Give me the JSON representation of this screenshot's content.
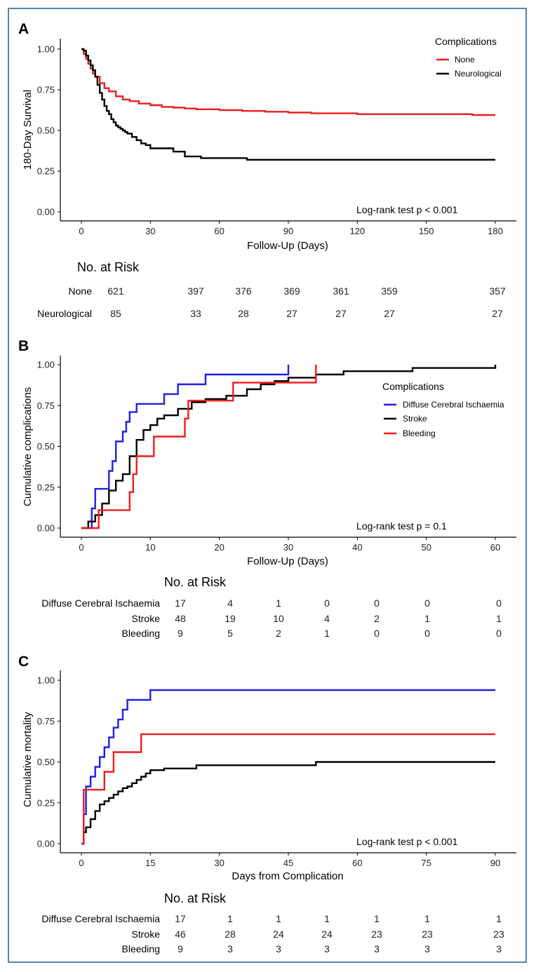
{
  "colors": {
    "frame": "#4f86b4",
    "red": "#ee1c1c",
    "black": "#000000",
    "blue": "#1f1fe6"
  },
  "chart_data": [
    {
      "panel": "A",
      "type": "line",
      "step": true,
      "title": "",
      "xlabel": "Follow-Up (Days)",
      "ylabel": "180-Day Survival",
      "xlim": [
        0,
        180
      ],
      "ylim": [
        0,
        1
      ],
      "xticks": [
        0,
        30,
        60,
        90,
        120,
        150,
        180
      ],
      "yticks": [
        "0.00",
        "0.25",
        "0.50",
        "0.75",
        "1.00"
      ],
      "legend": {
        "title": "Complications",
        "position": "top-right"
      },
      "annotation": "Log-rank test p < 0.001",
      "series": [
        {
          "name": "None",
          "color": "#ee1c1c",
          "x": [
            0,
            1,
            2,
            3,
            4,
            5,
            6,
            8,
            10,
            12,
            15,
            18,
            21,
            25,
            30,
            35,
            40,
            45,
            50,
            60,
            70,
            80,
            90,
            100,
            120,
            140,
            160,
            170,
            180
          ],
          "y": [
            1.0,
            0.97,
            0.94,
            0.91,
            0.88,
            0.85,
            0.83,
            0.79,
            0.76,
            0.74,
            0.71,
            0.69,
            0.68,
            0.665,
            0.655,
            0.645,
            0.64,
            0.635,
            0.63,
            0.625,
            0.62,
            0.615,
            0.61,
            0.605,
            0.6,
            0.6,
            0.6,
            0.595,
            0.595
          ]
        },
        {
          "name": "Neurological",
          "color": "#000000",
          "x": [
            0,
            1,
            2,
            3,
            4,
            5,
            6,
            7,
            8,
            9,
            10,
            11,
            12,
            13,
            14,
            15,
            16,
            17,
            18,
            19,
            20,
            22,
            24,
            26,
            28,
            30,
            40,
            45,
            52,
            72,
            180
          ],
          "y": [
            1.0,
            0.99,
            0.96,
            0.93,
            0.9,
            0.87,
            0.83,
            0.78,
            0.73,
            0.69,
            0.65,
            0.62,
            0.6,
            0.57,
            0.55,
            0.53,
            0.52,
            0.51,
            0.5,
            0.49,
            0.48,
            0.46,
            0.44,
            0.42,
            0.41,
            0.39,
            0.37,
            0.34,
            0.33,
            0.32,
            0.32
          ]
        }
      ],
      "risk_table": {
        "title": "No. at Risk",
        "columns": [
          0,
          30,
          60,
          90,
          120,
          150,
          180
        ],
        "rows": [
          {
            "label": "None",
            "values": [
              "621",
              "397",
              "376",
              "369",
              "361",
              "359",
              "357"
            ]
          },
          {
            "label": "Neurological",
            "values": [
              "85",
              "33",
              "28",
              "27",
              "27",
              "27",
              "27"
            ]
          }
        ]
      }
    },
    {
      "panel": "B",
      "type": "line",
      "step": true,
      "title": "",
      "xlabel": "Follow-Up (Days)",
      "ylabel": "Cumulative complications",
      "xlim": [
        0,
        60
      ],
      "ylim": [
        0,
        1
      ],
      "xticks": [
        0,
        10,
        20,
        30,
        40,
        50,
        60
      ],
      "yticks": [
        "0.00",
        "0.25",
        "0.50",
        "0.75",
        "1.00"
      ],
      "legend": {
        "title": "Complications",
        "position": "top-right"
      },
      "annotation": "Log-rank test p = 0.1",
      "series": [
        {
          "name": "Diffuse Cerebral Ischaemia",
          "color": "#1f1fe6",
          "x": [
            0,
            1.5,
            2,
            3,
            4,
            4.5,
            5,
            6,
            6.5,
            7,
            8,
            10,
            12,
            14,
            18,
            30
          ],
          "y": [
            0,
            0.12,
            0.24,
            0.24,
            0.35,
            0.41,
            0.53,
            0.59,
            0.65,
            0.71,
            0.76,
            0.76,
            0.82,
            0.88,
            0.94,
            1.0
          ]
        },
        {
          "name": "Stroke",
          "color": "#000000",
          "x": [
            0,
            1,
            2,
            3,
            4,
            5,
            6,
            7,
            8,
            9,
            10,
            11,
            12,
            14,
            16,
            18,
            21,
            24,
            26,
            28,
            30,
            34,
            38,
            48,
            60
          ],
          "y": [
            0,
            0.04,
            0.08,
            0.15,
            0.23,
            0.29,
            0.33,
            0.44,
            0.54,
            0.6,
            0.63,
            0.67,
            0.69,
            0.73,
            0.77,
            0.79,
            0.81,
            0.85,
            0.88,
            0.9,
            0.92,
            0.94,
            0.96,
            0.98,
            1.0
          ]
        },
        {
          "name": "Bleeding",
          "color": "#ee1c1c",
          "x": [
            0,
            2.5,
            7,
            7.5,
            8,
            10.5,
            15,
            15.5,
            22,
            34
          ],
          "y": [
            0,
            0.11,
            0.22,
            0.33,
            0.44,
            0.56,
            0.67,
            0.78,
            0.89,
            1.0
          ]
        }
      ],
      "risk_table": {
        "title": "No. at Risk",
        "columns": [
          0,
          10,
          20,
          30,
          40,
          50,
          60
        ],
        "rows": [
          {
            "label": "Diffuse Cerebral Ischaemia",
            "values": [
              "17",
              "4",
              "1",
              "0",
              "0",
              "0",
              "0"
            ]
          },
          {
            "label": "Stroke",
            "values": [
              "48",
              "19",
              "10",
              "4",
              "2",
              "1",
              "1"
            ]
          },
          {
            "label": "Bleeding",
            "values": [
              "9",
              "5",
              "2",
              "1",
              "0",
              "0",
              "0"
            ]
          }
        ]
      }
    },
    {
      "panel": "C",
      "type": "line",
      "step": true,
      "title": "",
      "xlabel": "Days from Complication",
      "ylabel": "Cumulative mortality",
      "xlim": [
        0,
        90
      ],
      "ylim": [
        0,
        1
      ],
      "xticks": [
        0,
        15,
        30,
        45,
        60,
        75,
        90
      ],
      "yticks": [
        "0.00",
        "0.25",
        "0.50",
        "0.75",
        "1.00"
      ],
      "annotation": "Log-rank test p < 0.001",
      "series": [
        {
          "name": "Diffuse Cerebral Ischaemia",
          "color": "#1f1fe6",
          "x": [
            0,
            0.5,
            1,
            2,
            3,
            4,
            5,
            6,
            7,
            8,
            9,
            10,
            12,
            15,
            90
          ],
          "y": [
            0,
            0.18,
            0.35,
            0.41,
            0.47,
            0.53,
            0.59,
            0.65,
            0.71,
            0.76,
            0.82,
            0.88,
            0.88,
            0.94,
            0.94
          ]
        },
        {
          "name": "Stroke",
          "color": "#000000",
          "x": [
            0,
            0.5,
            1,
            2,
            3,
            4,
            5,
            6,
            7,
            8,
            9,
            10,
            11,
            12,
            13,
            14,
            15,
            18,
            25,
            51,
            90
          ],
          "y": [
            0,
            0.07,
            0.1,
            0.15,
            0.2,
            0.24,
            0.26,
            0.28,
            0.3,
            0.32,
            0.34,
            0.35,
            0.37,
            0.39,
            0.41,
            0.43,
            0.45,
            0.46,
            0.48,
            0.5,
            0.5
          ]
        },
        {
          "name": "Bleeding",
          "color": "#ee1c1c",
          "x": [
            0,
            0.5,
            3,
            5,
            7,
            13,
            90
          ],
          "y": [
            0,
            0.33,
            0.33,
            0.44,
            0.56,
            0.67,
            0.67
          ]
        }
      ],
      "risk_table": {
        "title": "No. at Risk",
        "columns": [
          0,
          15,
          30,
          45,
          60,
          75,
          90
        ],
        "rows": [
          {
            "label": "Diffuse Cerebral Ischaemia",
            "values": [
              "17",
              "1",
              "1",
              "1",
              "1",
              "1",
              "1"
            ]
          },
          {
            "label": "Stroke",
            "values": [
              "46",
              "28",
              "24",
              "24",
              "23",
              "23",
              "23"
            ]
          },
          {
            "label": "Bleeding",
            "values": [
              "9",
              "3",
              "3",
              "3",
              "3",
              "3",
              "3"
            ]
          }
        ]
      }
    }
  ]
}
